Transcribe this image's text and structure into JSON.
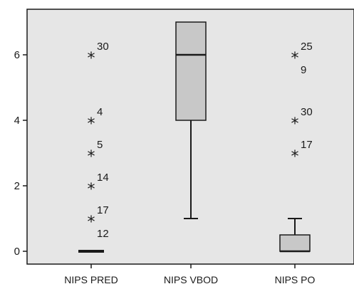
{
  "chart_data": {
    "type": "boxplot",
    "ylim": [
      -0.4,
      7.3
    ],
    "y_ticks": [
      "0",
      "2",
      "4",
      "6"
    ],
    "colors": {
      "plot_bg": "#e6e6e6",
      "box_fill": "#c8c8c8",
      "stroke": "#1a1a1a"
    },
    "groups": [
      {
        "category": "NIPS PRED",
        "q1": 0,
        "median": 0,
        "q3": 0,
        "whisker_low": 0,
        "whisker_high": 0,
        "outliers": [
          {
            "value": 6,
            "label": "30"
          },
          {
            "value": 4,
            "label": "4"
          },
          {
            "value": 3,
            "label": "5"
          },
          {
            "value": 2,
            "label": "14"
          },
          {
            "value": 1,
            "label": "17"
          },
          {
            "value": 0.6,
            "label": "12"
          }
        ]
      },
      {
        "category": "NIPS VBOD",
        "q1": 4,
        "median": 6,
        "q3": 7,
        "whisker_low": 1,
        "whisker_high": 7,
        "outliers": []
      },
      {
        "category": "NIPS PO",
        "q1": 0,
        "median": 0,
        "q3": 0.5,
        "whisker_low": 0,
        "whisker_high": 1,
        "outliers": [
          {
            "value": 6,
            "label": "25"
          },
          {
            "value": 5.7,
            "label": "9"
          },
          {
            "value": 4,
            "label": "30"
          },
          {
            "value": 3,
            "label": "17"
          }
        ]
      }
    ]
  }
}
